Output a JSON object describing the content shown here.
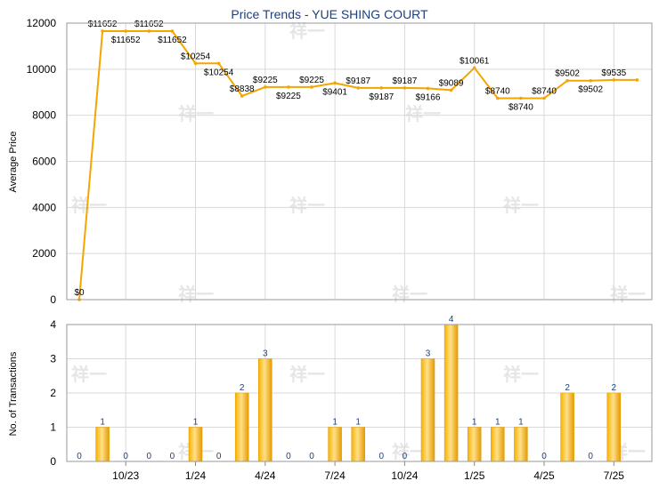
{
  "chart_data": [
    {
      "type": "line",
      "title": "Price Trends - YUE SHING COURT",
      "ylabel": "Average Price",
      "ylim": [
        0,
        12000
      ],
      "yticks": [
        0,
        2000,
        4000,
        6000,
        8000,
        10000,
        12000
      ],
      "x": [
        0,
        1,
        2,
        3,
        4,
        5,
        6,
        7,
        8,
        9,
        10,
        11,
        12,
        13,
        14,
        15,
        16,
        17,
        18,
        19,
        20,
        21,
        22,
        23,
        24
      ],
      "values": [
        0,
        11652,
        11652,
        11652,
        11652,
        10254,
        10254,
        8838,
        9225,
        9225,
        9225,
        9401,
        9187,
        9187,
        9187,
        9166,
        9089,
        10061,
        8740,
        8740,
        8740,
        9502,
        9502,
        9535,
        9535
      ],
      "data_labels": [
        "$0",
        "$11652",
        "$11652",
        "$11652",
        "$11652",
        "$10254",
        "$10254",
        "$8838",
        "$9225",
        "$9225",
        "$9225",
        "$9401",
        "$9187",
        "$9187",
        "$9187",
        "$9166",
        "$9089",
        "$10061",
        "$8740",
        "$8740",
        "$8740",
        "$9502",
        "$9502",
        "$9535",
        ""
      ],
      "label_side": [
        "above",
        "above",
        "below",
        "above",
        "below",
        "above",
        "below",
        "above",
        "above",
        "below",
        "above",
        "below",
        "above",
        "below",
        "above",
        "below",
        "above",
        "above",
        "above",
        "below",
        "above",
        "above",
        "below",
        "above",
        "above"
      ],
      "line_color": "#f5a500",
      "grid": true
    },
    {
      "type": "bar",
      "ylabel": "No. of Transactions",
      "ylim": [
        0,
        4
      ],
      "yticks": [
        0,
        1,
        2,
        3,
        4
      ],
      "x": [
        0,
        1,
        2,
        3,
        4,
        5,
        6,
        7,
        8,
        9,
        10,
        11,
        12,
        13,
        14,
        15,
        16,
        17,
        18,
        19,
        20,
        21,
        22,
        23,
        24
      ],
      "values": [
        0,
        1,
        0,
        0,
        0,
        1,
        0,
        2,
        3,
        0,
        0,
        1,
        1,
        0,
        0,
        3,
        4,
        1,
        1,
        1,
        0,
        2,
        0,
        2,
        0
      ],
      "data_labels": [
        "0",
        "1",
        "0",
        "0",
        "0",
        "1",
        "0",
        "2",
        "3",
        "0",
        "0",
        "1",
        "1",
        "0",
        "0",
        "3",
        "4",
        "1",
        "1",
        "1",
        "0",
        "2",
        "0",
        "2",
        ""
      ],
      "xtick_labels": [
        "10/23",
        "1/24",
        "4/24",
        "7/24",
        "10/24",
        "1/25",
        "4/25",
        "7/25"
      ],
      "xtick_positions": [
        2,
        5,
        8,
        11,
        14,
        17,
        20,
        23
      ],
      "bar_color": "#f5a500",
      "grid": true
    }
  ],
  "watermark": "祥一"
}
